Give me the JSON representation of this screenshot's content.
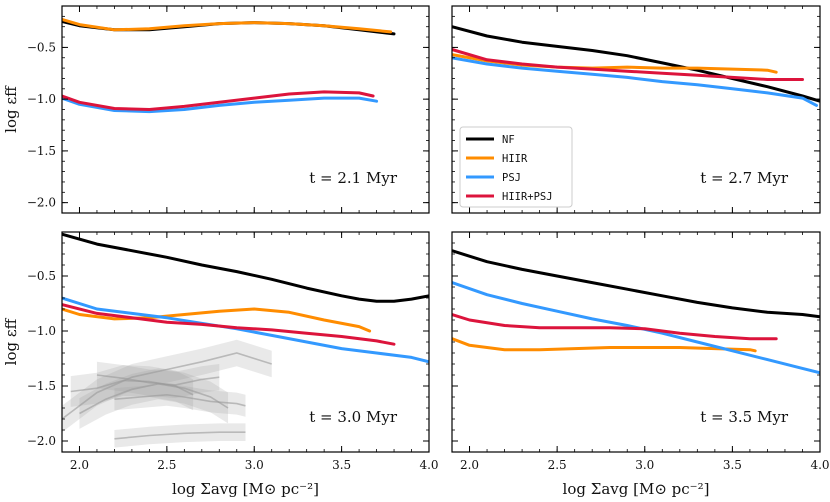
{
  "figure": {
    "xlabel": "log Σavg [M⊙ pc⁻²]",
    "ylabel": "log εff"
  },
  "colors": {
    "NF": "#000000",
    "HIIR": "#ff8c00",
    "PSJ": "#3399ff",
    "HIIR+PSJ": "#dc143c",
    "observations": "#9a9a9a"
  },
  "chart_data": [
    {
      "type": "line",
      "title": "",
      "annotation": "t = 2.1 Myr",
      "xlabel": "",
      "ylabel": "log εff",
      "xlim": [
        1.9,
        4.0
      ],
      "ylim": [
        -2.1,
        -0.1
      ],
      "xticks": [
        "2.0",
        "2.5",
        "3.0",
        "3.5",
        "4.0"
      ],
      "yticks": [
        "-0.5",
        "-1.0",
        "-1.5",
        "-2.0"
      ],
      "show_xticklabels": false,
      "show_yticklabels": true,
      "legend": false,
      "series": [
        {
          "name": "NF",
          "x": [
            1.9,
            2.0,
            2.2,
            2.4,
            2.6,
            2.8,
            3.0,
            3.2,
            3.4,
            3.6,
            3.8
          ],
          "y": [
            -0.25,
            -0.29,
            -0.33,
            -0.33,
            -0.3,
            -0.27,
            -0.26,
            -0.27,
            -0.29,
            -0.33,
            -0.37
          ]
        },
        {
          "name": "HIIR",
          "x": [
            1.9,
            2.0,
            2.2,
            2.4,
            2.6,
            2.8,
            3.0,
            3.2,
            3.4,
            3.6,
            3.78
          ],
          "y": [
            -0.23,
            -0.28,
            -0.33,
            -0.32,
            -0.29,
            -0.27,
            -0.26,
            -0.27,
            -0.29,
            -0.32,
            -0.35
          ]
        },
        {
          "name": "PSJ",
          "x": [
            1.9,
            2.0,
            2.2,
            2.4,
            2.6,
            2.8,
            3.0,
            3.2,
            3.4,
            3.6,
            3.7
          ],
          "y": [
            -0.99,
            -1.05,
            -1.11,
            -1.12,
            -1.1,
            -1.06,
            -1.03,
            -1.01,
            -0.99,
            -0.99,
            -1.02
          ]
        },
        {
          "name": "HIIR+PSJ",
          "x": [
            1.9,
            2.0,
            2.2,
            2.4,
            2.6,
            2.8,
            3.0,
            3.2,
            3.4,
            3.6,
            3.68
          ],
          "y": [
            -0.97,
            -1.03,
            -1.09,
            -1.1,
            -1.07,
            -1.03,
            -0.99,
            -0.95,
            -0.93,
            -0.94,
            -0.97
          ]
        }
      ]
    },
    {
      "type": "line",
      "title": "",
      "annotation": "t = 2.7 Myr",
      "xlabel": "",
      "ylabel": "",
      "xlim": [
        1.9,
        4.0
      ],
      "ylim": [
        -2.1,
        -0.1
      ],
      "xticks": [
        "2.0",
        "2.5",
        "3.0",
        "3.5",
        "4.0"
      ],
      "yticks": [
        "-0.5",
        "-1.0",
        "-1.5",
        "-2.0"
      ],
      "show_xticklabels": false,
      "show_yticklabels": false,
      "legend": true,
      "legend_position": "lower-left",
      "series": [
        {
          "name": "NF",
          "x": [
            1.9,
            2.1,
            2.3,
            2.5,
            2.7,
            2.9,
            3.1,
            3.3,
            3.5,
            3.7,
            3.9,
            4.0
          ],
          "y": [
            -0.3,
            -0.39,
            -0.45,
            -0.49,
            -0.53,
            -0.58,
            -0.65,
            -0.72,
            -0.8,
            -0.88,
            -0.97,
            -1.02
          ]
        },
        {
          "name": "HIIR",
          "x": [
            1.9,
            2.1,
            2.3,
            2.5,
            2.7,
            2.9,
            3.1,
            3.3,
            3.5,
            3.7,
            3.75
          ],
          "y": [
            -0.57,
            -0.63,
            -0.67,
            -0.69,
            -0.7,
            -0.69,
            -0.7,
            -0.7,
            -0.71,
            -0.72,
            -0.74
          ]
        },
        {
          "name": "PSJ",
          "x": [
            1.9,
            2.1,
            2.3,
            2.5,
            2.7,
            2.9,
            3.1,
            3.3,
            3.5,
            3.7,
            3.9,
            3.98
          ],
          "y": [
            -0.6,
            -0.66,
            -0.7,
            -0.73,
            -0.76,
            -0.79,
            -0.83,
            -0.86,
            -0.9,
            -0.94,
            -0.99,
            -1.06
          ]
        },
        {
          "name": "HIIR+PSJ",
          "x": [
            1.9,
            2.1,
            2.3,
            2.5,
            2.7,
            2.9,
            3.1,
            3.3,
            3.5,
            3.7,
            3.9
          ],
          "y": [
            -0.52,
            -0.62,
            -0.66,
            -0.69,
            -0.71,
            -0.73,
            -0.75,
            -0.77,
            -0.79,
            -0.81,
            -0.81
          ]
        }
      ]
    },
    {
      "type": "line",
      "title": "",
      "annotation": "t = 3.0 Myr",
      "xlabel": "log Σavg [M⊙ pc⁻²]",
      "ylabel": "log εff",
      "xlim": [
        1.9,
        4.0
      ],
      "ylim": [
        -2.1,
        -0.1
      ],
      "xticks": [
        "2.0",
        "2.5",
        "3.0",
        "3.5",
        "4.0"
      ],
      "yticks": [
        "-0.5",
        "-1.0",
        "-1.5",
        "-2.0"
      ],
      "show_xticklabels": true,
      "show_yticklabels": true,
      "legend": false,
      "series": [
        {
          "name": "NF",
          "x": [
            1.9,
            2.1,
            2.3,
            2.5,
            2.7,
            2.9,
            3.1,
            3.3,
            3.5,
            3.6,
            3.7,
            3.8,
            3.9,
            4.0
          ],
          "y": [
            -0.12,
            -0.21,
            -0.27,
            -0.33,
            -0.4,
            -0.46,
            -0.53,
            -0.61,
            -0.68,
            -0.71,
            -0.73,
            -0.73,
            -0.71,
            -0.68
          ]
        },
        {
          "name": "HIIR",
          "x": [
            1.9,
            2.0,
            2.2,
            2.4,
            2.6,
            2.8,
            3.0,
            3.2,
            3.4,
            3.6,
            3.66
          ],
          "y": [
            -0.8,
            -0.85,
            -0.89,
            -0.88,
            -0.85,
            -0.82,
            -0.8,
            -0.83,
            -0.9,
            -0.96,
            -1.0
          ]
        },
        {
          "name": "PSJ",
          "x": [
            1.9,
            2.1,
            2.3,
            2.5,
            2.7,
            2.9,
            3.1,
            3.3,
            3.5,
            3.7,
            3.9,
            4.0
          ],
          "y": [
            -0.7,
            -0.8,
            -0.84,
            -0.88,
            -0.93,
            -0.98,
            -1.04,
            -1.1,
            -1.16,
            -1.2,
            -1.24,
            -1.28
          ]
        },
        {
          "name": "HIIR+PSJ",
          "x": [
            1.9,
            2.1,
            2.3,
            2.5,
            2.7,
            2.9,
            3.1,
            3.3,
            3.5,
            3.7,
            3.8
          ],
          "y": [
            -0.76,
            -0.84,
            -0.88,
            -0.92,
            -0.94,
            -0.97,
            -0.99,
            -1.02,
            -1.05,
            -1.09,
            -1.12
          ]
        }
      ],
      "shaded_bands": [
        {
          "x": [
            1.9,
            2.1,
            2.3,
            2.5,
            2.7,
            2.9,
            3.0,
            3.1
          ],
          "y": [
            -1.8,
            -1.56,
            -1.42,
            -1.35,
            -1.28,
            -1.2,
            -1.25,
            -1.3
          ],
          "halfwidth": 0.12
        },
        {
          "x": [
            1.95,
            2.1,
            2.25,
            2.4,
            2.55,
            2.65
          ],
          "y": [
            -1.55,
            -1.52,
            -1.45,
            -1.46,
            -1.5,
            -1.58
          ],
          "halfwidth": 0.14
        },
        {
          "x": [
            2.0,
            2.15,
            2.3,
            2.45,
            2.6,
            2.75,
            2.85
          ],
          "y": [
            -1.75,
            -1.62,
            -1.53,
            -1.48,
            -1.52,
            -1.6,
            -1.7
          ],
          "halfwidth": 0.14
        },
        {
          "x": [
            2.1,
            2.25,
            2.4,
            2.55,
            2.7,
            2.8
          ],
          "y": [
            -1.4,
            -1.43,
            -1.47,
            -1.49,
            -1.44,
            -1.42
          ],
          "halfwidth": 0.12
        },
        {
          "x": [
            2.2,
            2.35,
            2.5,
            2.6,
            2.75,
            2.9,
            2.95
          ],
          "y": [
            -1.62,
            -1.6,
            -1.58,
            -1.6,
            -1.64,
            -1.66,
            -1.68
          ],
          "halfwidth": 0.1
        },
        {
          "x": [
            2.2,
            2.4,
            2.6,
            2.8,
            2.95
          ],
          "y": [
            -1.98,
            -1.95,
            -1.93,
            -1.92,
            -1.92
          ],
          "halfwidth": 0.08
        }
      ]
    },
    {
      "type": "line",
      "title": "",
      "annotation": "t = 3.5 Myr",
      "xlabel": "log Σavg [M⊙ pc⁻²]",
      "ylabel": "",
      "xlim": [
        1.9,
        4.0
      ],
      "ylim": [
        -2.1,
        -0.1
      ],
      "xticks": [
        "2.0",
        "2.5",
        "3.0",
        "3.5",
        "4.0"
      ],
      "yticks": [
        "-0.5",
        "-1.0",
        "-1.5",
        "-2.0"
      ],
      "show_xticklabels": true,
      "show_yticklabels": false,
      "legend": false,
      "series": [
        {
          "name": "NF",
          "x": [
            1.9,
            2.1,
            2.3,
            2.5,
            2.7,
            2.9,
            3.1,
            3.3,
            3.5,
            3.7,
            3.9,
            4.0
          ],
          "y": [
            -0.27,
            -0.37,
            -0.44,
            -0.5,
            -0.56,
            -0.62,
            -0.68,
            -0.74,
            -0.79,
            -0.83,
            -0.85,
            -0.87
          ]
        },
        {
          "name": "HIIR",
          "x": [
            1.9,
            2.0,
            2.2,
            2.4,
            2.6,
            2.8,
            3.0,
            3.2,
            3.4,
            3.6,
            3.63
          ],
          "y": [
            -1.07,
            -1.13,
            -1.17,
            -1.17,
            -1.16,
            -1.15,
            -1.15,
            -1.15,
            -1.16,
            -1.17,
            -1.18
          ]
        },
        {
          "name": "PSJ",
          "x": [
            1.9,
            2.1,
            2.3,
            2.5,
            2.7,
            2.9,
            3.1,
            3.3,
            3.5,
            3.7,
            3.9,
            4.0
          ],
          "y": [
            -0.56,
            -0.67,
            -0.75,
            -0.82,
            -0.89,
            -0.95,
            -1.02,
            -1.1,
            -1.18,
            -1.26,
            -1.34,
            -1.38
          ]
        },
        {
          "name": "HIIR+PSJ",
          "x": [
            1.9,
            2.0,
            2.2,
            2.4,
            2.6,
            2.8,
            3.0,
            3.2,
            3.4,
            3.6,
            3.75
          ],
          "y": [
            -0.85,
            -0.9,
            -0.95,
            -0.97,
            -0.97,
            -0.97,
            -0.98,
            -1.02,
            -1.05,
            -1.07,
            -1.07
          ]
        }
      ]
    }
  ]
}
